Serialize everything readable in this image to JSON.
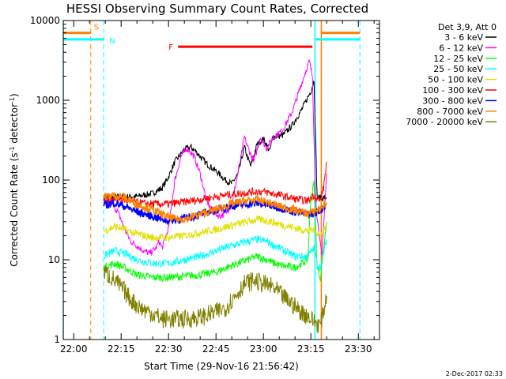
{
  "chart_data": {
    "type": "line",
    "title": "HESSI Observing Summary Count Rates, Corrected",
    "xlabel": "Start Time (29-Nov-16 21:56:42)",
    "ylabel_parts": [
      "Corrected Count Rate (s",
      "-1",
      " detector",
      "-1",
      ")"
    ],
    "ylim": [
      1,
      10000
    ],
    "y_scale": "log",
    "xlim_minutes": [
      1316.7,
      1416.7
    ],
    "x_ticks": [
      {
        "label": "22:00",
        "min": 1320
      },
      {
        "label": "22:15",
        "min": 1335
      },
      {
        "label": "22:30",
        "min": 1350
      },
      {
        "label": "22:45",
        "min": 1365
      },
      {
        "label": "23:00",
        "min": 1380
      },
      {
        "label": "23:15",
        "min": 1395
      },
      {
        "label": "23:30",
        "min": 1410
      }
    ],
    "y_ticks": [
      {
        "label": "1",
        "v": 1
      },
      {
        "label": "10",
        "v": 10
      },
      {
        "label": "100",
        "v": 100
      },
      {
        "label": "1000",
        "v": 1000
      },
      {
        "label": "10000",
        "v": 10000
      }
    ],
    "legend_title": "Det 3,9, Att 0",
    "legend_position": "right",
    "grid": false,
    "series": [
      {
        "name": "3 - 6 keV",
        "color": "#000000",
        "points": [
          [
            1329.5,
            60
          ],
          [
            1335,
            62
          ],
          [
            1340,
            62
          ],
          [
            1345,
            68
          ],
          [
            1348,
            80
          ],
          [
            1350,
            110
          ],
          [
            1352,
            170
          ],
          [
            1355,
            240
          ],
          [
            1357,
            260
          ],
          [
            1359,
            220
          ],
          [
            1362,
            160
          ],
          [
            1365,
            130
          ],
          [
            1368,
            100
          ],
          [
            1370,
            90
          ],
          [
            1372,
            120
          ],
          [
            1374,
            260
          ],
          [
            1375,
            190
          ],
          [
            1376,
            150
          ],
          [
            1378,
            280
          ],
          [
            1380,
            330
          ],
          [
            1382,
            230
          ],
          [
            1383,
            350
          ],
          [
            1386,
            360
          ],
          [
            1389,
            480
          ],
          [
            1392,
            750
          ],
          [
            1395,
            1300
          ],
          [
            1396,
            1800
          ],
          [
            1397,
            60
          ],
          [
            1398,
            60
          ],
          [
            1400,
            60
          ]
        ]
      },
      {
        "name": "6 - 12 keV",
        "color": "#ff00ff",
        "points": [
          [
            1329.5,
            55
          ],
          [
            1332,
            50
          ],
          [
            1334,
            40
          ],
          [
            1336,
            25
          ],
          [
            1338,
            17
          ],
          [
            1340,
            15
          ],
          [
            1342,
            13
          ],
          [
            1344,
            12
          ],
          [
            1346,
            14
          ],
          [
            1347,
            17
          ],
          [
            1348,
            14
          ],
          [
            1350,
            25
          ],
          [
            1352,
            100
          ],
          [
            1354,
            200
          ],
          [
            1356,
            250
          ],
          [
            1358,
            200
          ],
          [
            1360,
            120
          ],
          [
            1362,
            55
          ],
          [
            1364,
            40
          ],
          [
            1366,
            35
          ],
          [
            1368,
            38
          ],
          [
            1370,
            50
          ],
          [
            1373,
            200
          ],
          [
            1374,
            350
          ],
          [
            1375,
            260
          ],
          [
            1377,
            170
          ],
          [
            1379,
            340
          ],
          [
            1381,
            250
          ],
          [
            1383,
            340
          ],
          [
            1386,
            420
          ],
          [
            1389,
            700
          ],
          [
            1391,
            1200
          ],
          [
            1393,
            2100
          ],
          [
            1394.5,
            3100
          ],
          [
            1395.5,
            2000
          ],
          [
            1396.5,
            60
          ],
          [
            1397.5,
            20
          ],
          [
            1398.5,
            12
          ],
          [
            1399,
            25
          ],
          [
            1400,
            120
          ]
        ]
      },
      {
        "name": "12 - 25 keV",
        "color": "#00ff00",
        "points": [
          [
            1329.5,
            8
          ],
          [
            1333,
            9
          ],
          [
            1336,
            8
          ],
          [
            1340,
            6.5
          ],
          [
            1345,
            6
          ],
          [
            1350,
            6
          ],
          [
            1355,
            6.2
          ],
          [
            1360,
            6.5
          ],
          [
            1365,
            7
          ],
          [
            1370,
            8.5
          ],
          [
            1375,
            10
          ],
          [
            1378,
            11
          ],
          [
            1381,
            10
          ],
          [
            1385,
            8.5
          ],
          [
            1390,
            8
          ],
          [
            1394,
            10
          ],
          [
            1395,
            60
          ],
          [
            1396,
            90
          ],
          [
            1397,
            8
          ],
          [
            1398,
            6
          ],
          [
            1400,
            30
          ]
        ]
      },
      {
        "name": "25 - 50 keV",
        "color": "#00ffff",
        "points": [
          [
            1329.5,
            11
          ],
          [
            1333,
            13
          ],
          [
            1336,
            12
          ],
          [
            1340,
            10
          ],
          [
            1345,
            9
          ],
          [
            1350,
            9
          ],
          [
            1355,
            10
          ],
          [
            1360,
            11
          ],
          [
            1365,
            13
          ],
          [
            1370,
            15
          ],
          [
            1375,
            17
          ],
          [
            1378,
            18
          ],
          [
            1381,
            17
          ],
          [
            1385,
            14
          ],
          [
            1390,
            11
          ],
          [
            1394,
            11
          ],
          [
            1396,
            14
          ],
          [
            1397,
            9
          ],
          [
            1398,
            8
          ],
          [
            1400,
            18
          ]
        ]
      },
      {
        "name": "50 - 100 keV",
        "color": "#e0e000",
        "points": [
          [
            1329.5,
            23
          ],
          [
            1333,
            26
          ],
          [
            1336,
            24
          ],
          [
            1340,
            21
          ],
          [
            1345,
            19
          ],
          [
            1350,
            19
          ],
          [
            1355,
            20
          ],
          [
            1360,
            22
          ],
          [
            1365,
            24
          ],
          [
            1370,
            27
          ],
          [
            1375,
            30
          ],
          [
            1378,
            32
          ],
          [
            1381,
            31
          ],
          [
            1385,
            28
          ],
          [
            1390,
            25
          ],
          [
            1394,
            23
          ],
          [
            1396,
            24
          ],
          [
            1397,
            22
          ],
          [
            1398,
            20
          ],
          [
            1400,
            28
          ]
        ]
      },
      {
        "name": "100 - 300 keV",
        "color": "#ff0000",
        "points": [
          [
            1329.5,
            55
          ],
          [
            1333,
            58
          ],
          [
            1336,
            56
          ],
          [
            1340,
            52
          ],
          [
            1345,
            50
          ],
          [
            1350,
            50
          ],
          [
            1355,
            53
          ],
          [
            1360,
            57
          ],
          [
            1365,
            62
          ],
          [
            1370,
            66
          ],
          [
            1375,
            70
          ],
          [
            1378,
            72
          ],
          [
            1381,
            70
          ],
          [
            1385,
            65
          ],
          [
            1390,
            58
          ],
          [
            1394,
            55
          ],
          [
            1396,
            65
          ],
          [
            1397,
            58
          ],
          [
            1398,
            55
          ],
          [
            1399,
            80
          ],
          [
            1400,
            170
          ]
        ]
      },
      {
        "name": "300 - 800 keV",
        "color": "#0000ff",
        "points": [
          [
            1329.5,
            48
          ],
          [
            1333,
            52
          ],
          [
            1336,
            47
          ],
          [
            1340,
            40
          ],
          [
            1345,
            35
          ],
          [
            1348,
            32
          ],
          [
            1350,
            31
          ],
          [
            1355,
            33
          ],
          [
            1360,
            37
          ],
          [
            1365,
            42
          ],
          [
            1370,
            47
          ],
          [
            1375,
            50
          ],
          [
            1378,
            51
          ],
          [
            1381,
            49
          ],
          [
            1385,
            45
          ],
          [
            1390,
            40
          ],
          [
            1394,
            37
          ],
          [
            1396,
            38
          ],
          [
            1397,
            40
          ],
          [
            1398,
            42
          ],
          [
            1400,
            50
          ]
        ]
      },
      {
        "name": "800 - 7000 keV",
        "color": "#ff8000",
        "points": [
          [
            1329.5,
            62
          ],
          [
            1333,
            64
          ],
          [
            1336,
            60
          ],
          [
            1340,
            50
          ],
          [
            1345,
            42
          ],
          [
            1348,
            37
          ],
          [
            1350,
            34
          ],
          [
            1353,
            32
          ],
          [
            1356,
            33
          ],
          [
            1360,
            37
          ],
          [
            1365,
            43
          ],
          [
            1370,
            50
          ],
          [
            1374,
            55
          ],
          [
            1378,
            56
          ],
          [
            1381,
            53
          ],
          [
            1385,
            47
          ],
          [
            1390,
            42
          ],
          [
            1394,
            38
          ],
          [
            1396,
            40
          ],
          [
            1397,
            42
          ],
          [
            1398,
            44
          ],
          [
            1400,
            52
          ]
        ]
      },
      {
        "name": "7000 - 20000 keV",
        "color": "#808000",
        "points": [
          [
            1329.5,
            7
          ],
          [
            1332,
            6
          ],
          [
            1335,
            4.5
          ],
          [
            1338,
            3.2
          ],
          [
            1341,
            2.5
          ],
          [
            1344,
            2.2
          ],
          [
            1346,
            2
          ],
          [
            1348,
            1.8
          ],
          [
            1350,
            1.8
          ],
          [
            1355,
            1.8
          ],
          [
            1360,
            1.9
          ],
          [
            1365,
            2.2
          ],
          [
            1368,
            2.5
          ],
          [
            1371,
            3.5
          ],
          [
            1374,
            5
          ],
          [
            1377,
            5.5
          ],
          [
            1380,
            5
          ],
          [
            1383,
            4.5
          ],
          [
            1386,
            3.5
          ],
          [
            1389,
            2.8
          ],
          [
            1392,
            2.2
          ],
          [
            1394,
            2
          ],
          [
            1395,
            1.8
          ],
          [
            1397,
            1.6
          ],
          [
            1398,
            1.5
          ],
          [
            1400,
            3.5
          ]
        ]
      }
    ],
    "orbit_markers": [
      {
        "label": "S",
        "color": "#ff8000",
        "x_min": 1316.7,
        "x_max": 1325.4,
        "v": 7000
      },
      {
        "label": "N",
        "color": "#00ffff",
        "x_min": 1316.7,
        "x_max": 1329.5,
        "v": 5800
      },
      {
        "label": "F",
        "color": "#ff0000",
        "x_min": 1353,
        "x_max": 1395.5,
        "v": 4700
      }
    ],
    "right_markers": [
      {
        "color": "#ff8000",
        "x_min": 1398.3,
        "x_max": 1410.5,
        "v": 7000
      },
      {
        "color": "#00ffff",
        "x_min": 1396.3,
        "x_max": 1410.5,
        "v": 5800
      }
    ],
    "solid_lines": [
      {
        "color": "#00ffff",
        "x": 1316.7
      },
      {
        "color": "#00ffff",
        "x": 1396.3
      },
      {
        "color": "#ff8000",
        "x": 1398.3
      }
    ],
    "dashed_lines": [
      {
        "color": "#ff8000",
        "x": 1325.4
      },
      {
        "color": "#00ffff",
        "x": 1329.5
      },
      {
        "color": "#00ffff",
        "x": 1410.5
      }
    ]
  },
  "footer_date": "2-Dec-2017 02:33"
}
